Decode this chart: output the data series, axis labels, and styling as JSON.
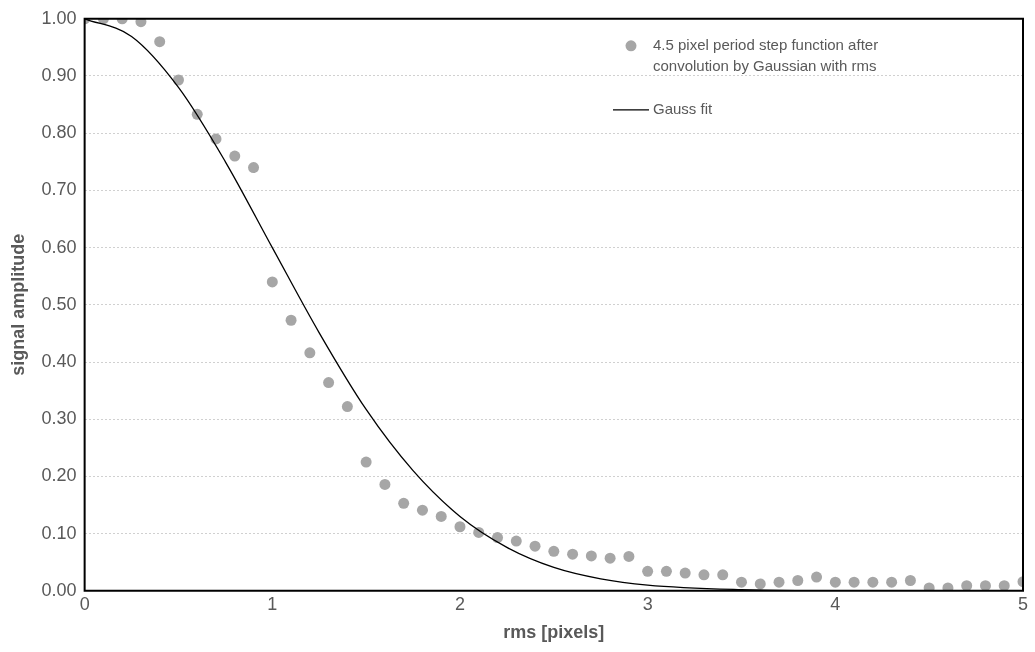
{
  "chart_data": {
    "type": "scatter",
    "xlabel": "rms [pixels]",
    "ylabel": "signal amplitude",
    "xlim": [
      0,
      5
    ],
    "xticks": [
      0,
      1,
      2,
      3,
      4,
      5
    ],
    "ylim": [
      0,
      1
    ],
    "yticks": [
      {
        "value": 0,
        "label": "0.00"
      },
      {
        "value": 0.1,
        "label": "0.10"
      },
      {
        "value": 0.2,
        "label": "0.20"
      },
      {
        "value": 0.3,
        "label": "0.30"
      },
      {
        "value": 0.4,
        "label": "0.40"
      },
      {
        "value": 0.5,
        "label": "0.50"
      },
      {
        "value": 0.6,
        "label": "0.60"
      },
      {
        "value": 0.7,
        "label": "0.70"
      },
      {
        "value": 0.8,
        "label": "0.80"
      },
      {
        "value": 0.9,
        "label": "0.90"
      },
      {
        "value": 1,
        "label": "1.00"
      }
    ],
    "grid": "y",
    "legend": "top right",
    "marker": "circle",
    "series": [
      {
        "name": "4.5 pixel period step function after convolution by Gaussian with rms",
        "color": "#a6a6a6",
        "x": [
          0,
          0.1,
          0.2,
          0.3,
          0.4,
          0.5,
          0.6,
          0.7,
          0.8,
          0.9,
          1.0,
          1.1,
          1.2,
          1.3,
          1.4,
          1.5,
          1.6,
          1.7,
          1.8,
          1.9,
          2.0,
          2.1,
          2.2,
          2.3,
          2.4,
          2.5,
          2.6,
          2.7,
          2.8,
          2.9,
          3.0,
          3.1,
          3.2,
          3.3,
          3.4,
          3.5,
          3.6,
          3.7,
          3.8,
          3.9,
          4.0,
          4.1,
          4.2,
          4.3,
          4.4,
          4.5,
          4.6,
          4.7,
          4.8,
          4.9,
          5.0
        ],
        "values": [
          1.0,
          1.0,
          1.0,
          0.995,
          0.96,
          0.893,
          0.833,
          0.79,
          0.76,
          0.74,
          0.54,
          0.473,
          0.416,
          0.364,
          0.322,
          0.225,
          0.186,
          0.153,
          0.141,
          0.13,
          0.112,
          0.102,
          0.093,
          0.087,
          0.078,
          0.069,
          0.064,
          0.061,
          0.057,
          0.06,
          0.034,
          0.034,
          0.031,
          0.028,
          0.028,
          0.015,
          0.012,
          0.015,
          0.018,
          0.024,
          0.015,
          0.015,
          0.015,
          0.015,
          0.018,
          0.005,
          0.005,
          0.009,
          0.009,
          0.009,
          0.016
        ]
      },
      {
        "name": "Gauss fit",
        "type": "line",
        "color": "#000000",
        "marker": "none",
        "line_style": "solid",
        "x": [
          0,
          0.25,
          0.5,
          0.75,
          1.0,
          1.25,
          1.5,
          1.75,
          2.0,
          2.25,
          2.5,
          2.75,
          3.0,
          3.5,
          4.0,
          5.0
        ],
        "values": [
          1.0,
          0.969,
          0.88,
          0.75,
          0.6,
          0.451,
          0.317,
          0.21,
          0.13,
          0.076,
          0.041,
          0.021,
          0.01,
          0.002,
          0,
          0
        ]
      }
    ]
  }
}
